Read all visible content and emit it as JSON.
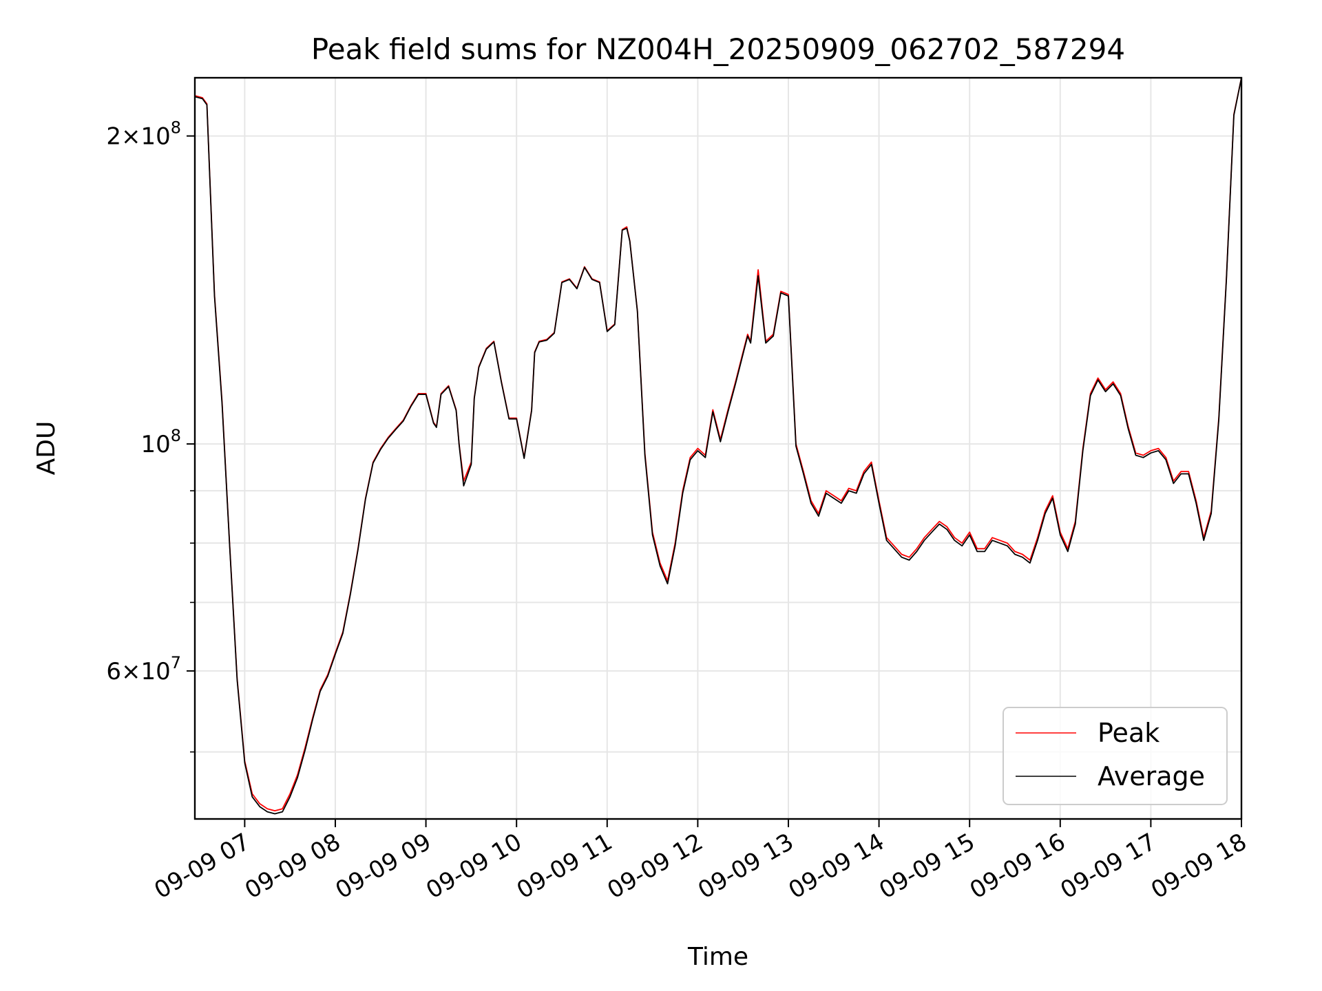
{
  "chart_data": {
    "type": "line",
    "title": "Peak field sums for NZ004H_20250909_062702_587294",
    "xlabel": "Time",
    "ylabel": "ADU",
    "xscale": "time",
    "yscale": "log",
    "xlim": [
      "2025-09-09 06:27",
      "2025-09-09 18:00"
    ],
    "ylim": [
      43000000,
      228000000
    ],
    "grid": true,
    "legend_position": "lower right",
    "x_tick_labels": [
      "09-09 07",
      "09-09 08",
      "09-09 09",
      "09-09 10",
      "09-09 11",
      "09-09 12",
      "09-09 13",
      "09-09 14",
      "09-09 15",
      "09-09 16",
      "09-09 17",
      "09-09 18"
    ],
    "x_ticks": [
      "2025-09-09 07:00",
      "2025-09-09 08:00",
      "2025-09-09 09:00",
      "2025-09-09 10:00",
      "2025-09-09 11:00",
      "2025-09-09 12:00",
      "2025-09-09 13:00",
      "2025-09-09 14:00",
      "2025-09-09 15:00",
      "2025-09-09 16:00",
      "2025-09-09 17:00",
      "2025-09-09 18:00"
    ],
    "y_major_ticks": [
      {
        "value": 60000000,
        "mantissa": "6",
        "exponent": "7"
      },
      {
        "value": 100000000,
        "mantissa": "",
        "exponent": "8"
      },
      {
        "value": 200000000,
        "mantissa": "2",
        "exponent": "8"
      }
    ],
    "y_minor_gridlines": [
      50000000,
      70000000,
      80000000,
      90000000
    ],
    "series": [
      {
        "name": "Peak",
        "color": "#ff0000",
        "x": [
          "06:27",
          "06:32",
          "06:35",
          "06:40",
          "06:45",
          "06:50",
          "06:55",
          "07:00",
          "07:05",
          "07:10",
          "07:15",
          "07:20",
          "07:25",
          "07:30",
          "07:35",
          "07:40",
          "07:45",
          "07:50",
          "07:55",
          "08:00",
          "08:05",
          "08:10",
          "08:15",
          "08:20",
          "08:25",
          "08:30",
          "08:35",
          "08:40",
          "08:45",
          "08:50",
          "08:55",
          "09:00",
          "09:05",
          "09:07",
          "09:10",
          "09:15",
          "09:20",
          "09:22",
          "09:25",
          "09:30",
          "09:32",
          "09:35",
          "09:40",
          "09:45",
          "09:50",
          "09:55",
          "10:00",
          "10:05",
          "10:10",
          "10:12",
          "10:15",
          "10:20",
          "10:25",
          "10:30",
          "10:35",
          "10:40",
          "10:45",
          "10:50",
          "10:55",
          "11:00",
          "11:05",
          "11:10",
          "11:13",
          "11:15",
          "11:20",
          "11:25",
          "11:30",
          "11:35",
          "11:40",
          "11:45",
          "11:50",
          "11:55",
          "12:00",
          "12:05",
          "12:10",
          "12:15",
          "12:20",
          "12:25",
          "12:30",
          "12:33",
          "12:35",
          "12:40",
          "12:45",
          "12:50",
          "12:55",
          "13:00",
          "13:05",
          "13:10",
          "13:15",
          "13:20",
          "13:25",
          "13:30",
          "13:35",
          "13:40",
          "13:45",
          "13:50",
          "13:55",
          "14:00",
          "14:05",
          "14:10",
          "14:15",
          "14:20",
          "14:25",
          "14:30",
          "14:35",
          "14:40",
          "14:45",
          "14:50",
          "14:55",
          "15:00",
          "15:05",
          "15:10",
          "15:15",
          "15:20",
          "15:25",
          "15:30",
          "15:35",
          "15:40",
          "15:45",
          "15:50",
          "15:55",
          "16:00",
          "16:05",
          "16:10",
          "16:15",
          "16:20",
          "16:25",
          "16:30",
          "16:35",
          "16:40",
          "16:45",
          "16:50",
          "16:55",
          "17:00",
          "17:05",
          "17:10",
          "17:15",
          "17:20",
          "17:25",
          "17:30",
          "17:35",
          "17:40",
          "17:45",
          "17:50",
          "17:55",
          "18:00"
        ],
        "values": [
          219000000,
          218000000,
          215000000,
          140000000,
          110000000,
          80000000,
          59000000,
          49000000,
          45500000,
          44500000,
          44000000,
          43800000,
          44000000,
          45500000,
          47500000,
          50500000,
          54000000,
          57500000,
          59500000,
          62500000,
          65500000,
          71500000,
          79000000,
          88500000,
          96000000,
          99000000,
          101500000,
          103500000,
          105500000,
          109000000,
          112000000,
          112000000,
          105000000,
          104000000,
          112000000,
          114000000,
          108000000,
          100000000,
          92000000,
          96000000,
          111000000,
          119000000,
          124000000,
          126000000,
          115000000,
          106000000,
          106000000,
          97000000,
          108000000,
          123000000,
          126000000,
          126500000,
          128500000,
          144000000,
          145000000,
          142000000,
          149000000,
          145000000,
          144000000,
          129000000,
          131000000,
          162000000,
          163000000,
          158000000,
          135000000,
          98000000,
          82000000,
          76500000,
          73500000,
          80000000,
          90000000,
          97000000,
          99000000,
          97500000,
          108000000,
          101000000,
          108000000,
          115000000,
          123000000,
          128000000,
          126000000,
          148000000,
          126000000,
          128000000,
          141000000,
          140000000,
          100000000,
          94000000,
          88000000,
          85500000,
          90000000,
          89000000,
          88000000,
          90500000,
          90000000,
          94000000,
          96000000,
          88000000,
          81000000,
          79500000,
          78000000,
          77500000,
          79000000,
          81000000,
          82500000,
          84000000,
          83000000,
          81000000,
          80000000,
          82000000,
          79000000,
          79000000,
          81000000,
          80500000,
          80000000,
          78500000,
          78000000,
          77000000,
          81000000,
          86000000,
          89000000,
          82000000,
          79000000,
          84000000,
          99000000,
          112000000,
          116000000,
          113000000,
          115000000,
          112000000,
          104000000,
          98000000,
          97500000,
          98500000,
          99000000,
          97000000,
          92000000,
          94000000,
          94000000,
          88000000,
          81000000,
          86000000,
          106000000,
          145000000,
          210000000,
          228000000
        ]
      },
      {
        "name": "Average",
        "color": "#000000",
        "x": [
          "06:27",
          "06:32",
          "06:35",
          "06:40",
          "06:45",
          "06:50",
          "06:55",
          "07:00",
          "07:05",
          "07:10",
          "07:15",
          "07:20",
          "07:25",
          "07:30",
          "07:35",
          "07:40",
          "07:45",
          "07:50",
          "07:55",
          "08:00",
          "08:05",
          "08:10",
          "08:15",
          "08:20",
          "08:25",
          "08:30",
          "08:35",
          "08:40",
          "08:45",
          "08:50",
          "08:55",
          "09:00",
          "09:05",
          "09:07",
          "09:10",
          "09:15",
          "09:20",
          "09:22",
          "09:25",
          "09:30",
          "09:32",
          "09:35",
          "09:40",
          "09:45",
          "09:50",
          "09:55",
          "10:00",
          "10:05",
          "10:10",
          "10:12",
          "10:15",
          "10:20",
          "10:25",
          "10:30",
          "10:35",
          "10:40",
          "10:45",
          "10:50",
          "10:55",
          "11:00",
          "11:05",
          "11:10",
          "11:13",
          "11:15",
          "11:20",
          "11:25",
          "11:30",
          "11:35",
          "11:40",
          "11:45",
          "11:50",
          "11:55",
          "12:00",
          "12:05",
          "12:10",
          "12:15",
          "12:20",
          "12:25",
          "12:30",
          "12:33",
          "12:35",
          "12:40",
          "12:45",
          "12:50",
          "12:55",
          "13:00",
          "13:05",
          "13:10",
          "13:15",
          "13:20",
          "13:25",
          "13:30",
          "13:35",
          "13:40",
          "13:45",
          "13:50",
          "13:55",
          "14:00",
          "14:05",
          "14:10",
          "14:15",
          "14:20",
          "14:25",
          "14:30",
          "14:35",
          "14:40",
          "14:45",
          "14:50",
          "14:55",
          "15:00",
          "15:05",
          "15:10",
          "15:15",
          "15:20",
          "15:25",
          "15:30",
          "15:35",
          "15:40",
          "15:45",
          "15:50",
          "15:55",
          "16:00",
          "16:05",
          "16:10",
          "16:15",
          "16:20",
          "16:25",
          "16:30",
          "16:35",
          "16:40",
          "16:45",
          "16:50",
          "16:55",
          "17:00",
          "17:05",
          "17:10",
          "17:15",
          "17:20",
          "17:25",
          "17:30",
          "17:35",
          "17:40",
          "17:45",
          "17:50",
          "17:55",
          "18:00"
        ],
        "values": [
          218500000,
          217500000,
          214500000,
          139500000,
          109500000,
          79800000,
          58800000,
          48800000,
          45200000,
          44200000,
          43700000,
          43500000,
          43700000,
          45200000,
          47200000,
          50200000,
          53800000,
          57300000,
          59300000,
          62300000,
          65300000,
          71300000,
          78800000,
          88300000,
          95800000,
          98800000,
          101300000,
          103300000,
          105300000,
          108800000,
          111800000,
          111800000,
          104800000,
          103800000,
          111800000,
          113800000,
          107800000,
          99800000,
          91000000,
          95500000,
          110800000,
          118800000,
          123800000,
          125800000,
          114800000,
          105800000,
          105800000,
          96800000,
          107800000,
          122800000,
          125800000,
          126300000,
          128300000,
          143800000,
          144800000,
          141800000,
          148800000,
          144800000,
          143800000,
          128800000,
          130800000,
          161800000,
          162500000,
          157800000,
          134800000,
          97500000,
          81500000,
          76000000,
          73000000,
          79500000,
          89500000,
          96500000,
          98500000,
          97000000,
          107500000,
          100500000,
          107500000,
          114500000,
          122500000,
          127500000,
          125500000,
          146000000,
          125500000,
          127500000,
          140500000,
          139500000,
          99500000,
          93500000,
          87500000,
          85000000,
          89500000,
          88500000,
          87500000,
          90000000,
          89500000,
          93500000,
          95500000,
          87500000,
          80500000,
          79000000,
          77500000,
          77000000,
          78500000,
          80500000,
          82000000,
          83500000,
          82500000,
          80500000,
          79500000,
          81500000,
          78500000,
          78500000,
          80500000,
          80000000,
          79500000,
          78000000,
          77500000,
          76500000,
          80500000,
          85500000,
          88500000,
          81500000,
          78500000,
          83500000,
          98500000,
          111500000,
          115500000,
          112500000,
          114500000,
          111500000,
          103500000,
          97500000,
          97000000,
          98000000,
          98500000,
          96500000,
          91500000,
          93500000,
          93500000,
          87500000,
          80500000,
          85500000,
          105500000,
          144500000,
          209500000,
          228000000
        ]
      }
    ]
  }
}
